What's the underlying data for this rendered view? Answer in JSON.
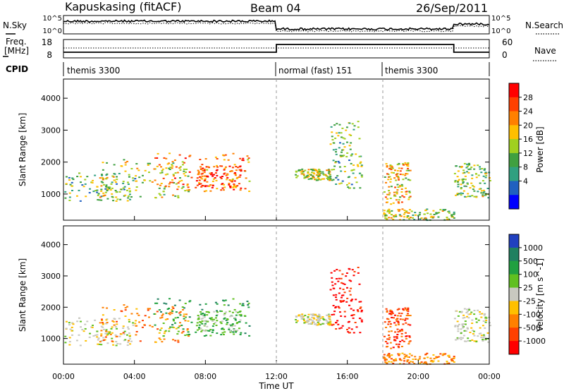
{
  "header": {
    "station": "Kapuskasing (fitACF)",
    "beam": "Beam 04",
    "date": "26/Sep/2011"
  },
  "summary": {
    "nsky_label": "N.Sky",
    "nsearch_label": "N.Search",
    "freq_label_line1": "Freq.",
    "freq_label_line2": "[MHz]",
    "nave_label": "Nave",
    "cpid_label": "CPID",
    "noise_ticks": [
      "10^5",
      "10^0"
    ],
    "freq_ticks": [
      "18",
      "8"
    ],
    "nave_ticks": [
      "60",
      "0"
    ],
    "cpid_segments": [
      {
        "label": "themis 3300",
        "start_hour": 0
      },
      {
        "label": "normal (fast) 151",
        "start_hour": 12
      },
      {
        "label": "themis 3300",
        "start_hour": 18
      }
    ]
  },
  "chart_data": [
    {
      "type": "heatmap",
      "name": "power-panel",
      "quantity": "Power",
      "ylabel": "Slant Range [km]",
      "xlabel": "Time UT",
      "x_range_hours": [
        0,
        24
      ],
      "ylim": [
        180,
        4600
      ],
      "y_ticks": [
        1000,
        2000,
        3000,
        4000
      ],
      "colorbar": {
        "label": "Power [dB]",
        "ticks": [
          "28",
          "24",
          "20",
          "16",
          "12",
          "8",
          "4"
        ],
        "colors": [
          "#ff0000",
          "#ff4000",
          "#ff8000",
          "#ffbf00",
          "#a0d020",
          "#40a040",
          "#30a080",
          "#2060c0",
          "#0000ff"
        ]
      }
    },
    {
      "type": "heatmap",
      "name": "velocity-panel",
      "quantity": "Velocity",
      "ylabel": "Slant Range [km]",
      "xlabel": "Time UT",
      "x_range_hours": [
        0,
        24
      ],
      "ylim": [
        180,
        4600
      ],
      "y_ticks": [
        1000,
        2000,
        3000,
        4000
      ],
      "colorbar": {
        "label": "Velocity [m s^-1]",
        "ticks": [
          "1000",
          "500",
          "100",
          "25",
          "-25",
          "-100",
          "-500",
          "-1000"
        ],
        "colors": [
          "#2040c0",
          "#208060",
          "#20a040",
          "#60c020",
          "#c8c8c0",
          "#ffc000",
          "#ff8000",
          "#ff4000",
          "#ff0000"
        ]
      }
    }
  ],
  "time_axis": {
    "label": "Time UT",
    "ticks": [
      "00:00",
      "04:00",
      "08:00",
      "12:00",
      "16:00",
      "20:00",
      "00:00"
    ]
  }
}
